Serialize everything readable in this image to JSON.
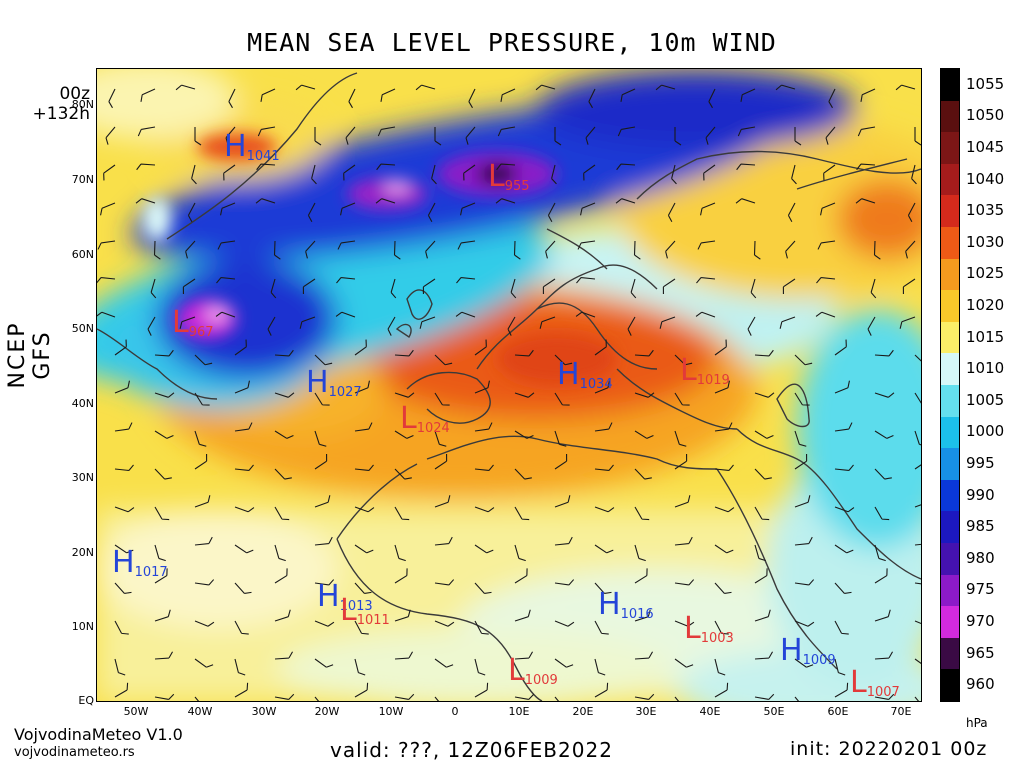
{
  "title": "MEAN SEA LEVEL PRESSURE, 10m WIND",
  "run": {
    "cycle": "00z",
    "lead": "+132h"
  },
  "model": "NCEP GFS",
  "lat_ticks": [
    "80N",
    "70N",
    "60N",
    "50N",
    "40N",
    "30N",
    "20N",
    "10N",
    "EQ"
  ],
  "lon_ticks": [
    "50W",
    "40W",
    "30W",
    "20W",
    "10W",
    "0",
    "10E",
    "20E",
    "30E",
    "40E",
    "50E",
    "60E",
    "70E"
  ],
  "colorbar": {
    "labels": [
      "1055",
      "1050",
      "1045",
      "1040",
      "1035",
      "1030",
      "1025",
      "1020",
      "1015",
      "1010",
      "1005",
      "1000",
      "995",
      "990",
      "985",
      "980",
      "975",
      "970",
      "965",
      "960"
    ],
    "colors": [
      "#000000",
      "#5a0f0f",
      "#7c1616",
      "#a51c1c",
      "#d42a1c",
      "#ee5a16",
      "#f59a1e",
      "#f9c82a",
      "#fbee68",
      "#d6f8f8",
      "#64e0ee",
      "#1cc0ea",
      "#1790e6",
      "#0a38d8",
      "#1c18c0",
      "#4412b0",
      "#8c1ac8",
      "#d22ade",
      "#3a0a44",
      "#000000"
    ],
    "unit": "hPa"
  },
  "pressure_centers": [
    {
      "type": "H",
      "value": "1041"
    },
    {
      "type": "L",
      "value": "955"
    },
    {
      "type": "L",
      "value": "967"
    },
    {
      "type": "H",
      "value": "1027"
    },
    {
      "type": "L",
      "value": "1024"
    },
    {
      "type": "H",
      "value": "1034"
    },
    {
      "type": "L",
      "value": "1019"
    },
    {
      "type": "H",
      "value": "1017"
    },
    {
      "type": "H",
      "value": "1013"
    },
    {
      "type": "L",
      "value": "1011"
    },
    {
      "type": "H",
      "value": "1016"
    },
    {
      "type": "L",
      "value": "1003"
    },
    {
      "type": "L",
      "value": "1009"
    },
    {
      "type": "H",
      "value": "1009"
    },
    {
      "type": "L",
      "value": "1007"
    }
  ],
  "footer": {
    "brand": "VojvodinaMeteo V1.0",
    "site": "vojvodinameteo.rs",
    "valid": "valid: ???, 12Z06FEB2022",
    "init": "init: 20220201 00z"
  }
}
